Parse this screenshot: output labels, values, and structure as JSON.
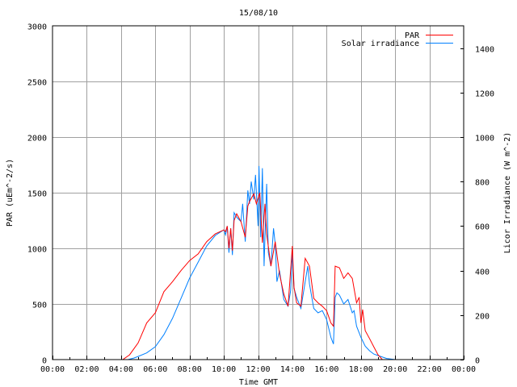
{
  "chart_data": {
    "type": "line",
    "title": "15/08/10",
    "xlabel": "Time GMT",
    "ylabel": "PAR (uEm^-2/s)",
    "y2label": "Licor Irradiance (W m^-2)",
    "xlim": [
      0,
      24
    ],
    "ylim": [
      0,
      3000
    ],
    "y2lim": [
      0,
      1500
    ],
    "grid": true,
    "legend_position": "top-right",
    "x_ticks": [
      0,
      2,
      4,
      6,
      8,
      10,
      12,
      14,
      16,
      18,
      20,
      22,
      24
    ],
    "x_tick_labels": [
      "00:00",
      "02:00",
      "04:00",
      "06:00",
      "08:00",
      "10:00",
      "12:00",
      "14:00",
      "16:00",
      "18:00",
      "20:00",
      "22:00",
      "00:00"
    ],
    "y_ticks": [
      0,
      500,
      1000,
      1500,
      2000,
      2500,
      3000
    ],
    "y_tick_labels": [
      "0",
      "500",
      "1000",
      "1500",
      "2000",
      "2500",
      "3000"
    ],
    "y2_ticks": [
      0,
      200,
      400,
      600,
      800,
      1000,
      1200,
      1400
    ],
    "y2_tick_labels": [
      "0",
      "200",
      "400",
      "600",
      "800",
      "1000",
      "1200",
      "1400"
    ],
    "series": [
      {
        "name": "PAR",
        "axis": "left",
        "color": "#ff0000",
        "points": [
          [
            0,
            0
          ],
          [
            4.1,
            0
          ],
          [
            4.5,
            43
          ],
          [
            5,
            150
          ],
          [
            5.5,
            330
          ],
          [
            6,
            420
          ],
          [
            6.5,
            610
          ],
          [
            7,
            700
          ],
          [
            7.5,
            800
          ],
          [
            8,
            890
          ],
          [
            8.5,
            950
          ],
          [
            9,
            1060
          ],
          [
            9.5,
            1130
          ],
          [
            10,
            1165
          ],
          [
            10.1,
            1150
          ],
          [
            10.2,
            1200
          ],
          [
            10.3,
            1000
          ],
          [
            10.4,
            1180
          ],
          [
            10.5,
            980
          ],
          [
            10.6,
            1250
          ],
          [
            10.75,
            1310
          ],
          [
            11,
            1240
          ],
          [
            11.25,
            1100
          ],
          [
            11.4,
            1380
          ],
          [
            11.5,
            1420
          ],
          [
            11.75,
            1490
          ],
          [
            11.9,
            1400
          ],
          [
            12,
            1450
          ],
          [
            12.1,
            1500
          ],
          [
            12.25,
            1050
          ],
          [
            12.4,
            1400
          ],
          [
            12.5,
            1130
          ],
          [
            12.75,
            840
          ],
          [
            13,
            1060
          ],
          [
            13.25,
            770
          ],
          [
            13.5,
            590
          ],
          [
            13.75,
            480
          ],
          [
            14,
            1020
          ],
          [
            14.1,
            650
          ],
          [
            14.25,
            510
          ],
          [
            14.5,
            480
          ],
          [
            14.75,
            910
          ],
          [
            15,
            840
          ],
          [
            15.25,
            550
          ],
          [
            15.5,
            510
          ],
          [
            15.75,
            480
          ],
          [
            16,
            440
          ],
          [
            16.25,
            330
          ],
          [
            16.4,
            300
          ],
          [
            16.5,
            840
          ],
          [
            16.75,
            825
          ],
          [
            17,
            730
          ],
          [
            17.25,
            780
          ],
          [
            17.5,
            730
          ],
          [
            17.75,
            510
          ],
          [
            17.9,
            560
          ],
          [
            18,
            330
          ],
          [
            18.1,
            450
          ],
          [
            18.25,
            260
          ],
          [
            18.5,
            190
          ],
          [
            18.75,
            115
          ],
          [
            19,
            43
          ],
          [
            19.25,
            0
          ],
          [
            24,
            0
          ]
        ]
      },
      {
        "name": "Solar irradiance",
        "axis": "right",
        "color": "#0080ff",
        "points": [
          [
            0,
            0
          ],
          [
            4.4,
            0
          ],
          [
            4.75,
            7
          ],
          [
            5,
            14
          ],
          [
            5.5,
            30
          ],
          [
            6,
            58
          ],
          [
            6.5,
            112
          ],
          [
            7,
            185
          ],
          [
            7.5,
            275
          ],
          [
            8,
            366
          ],
          [
            8.5,
            438
          ],
          [
            9,
            511
          ],
          [
            9.5,
            558
          ],
          [
            10,
            583
          ],
          [
            10.1,
            560
          ],
          [
            10.2,
            600
          ],
          [
            10.3,
            480
          ],
          [
            10.4,
            590
          ],
          [
            10.5,
            470
          ],
          [
            10.6,
            660
          ],
          [
            10.75,
            640
          ],
          [
            11,
            620
          ],
          [
            11.1,
            700
          ],
          [
            11.25,
            530
          ],
          [
            11.4,
            760
          ],
          [
            11.5,
            700
          ],
          [
            11.6,
            800
          ],
          [
            11.75,
            720
          ],
          [
            11.85,
            830
          ],
          [
            12,
            600
          ],
          [
            12.05,
            870
          ],
          [
            12.15,
            550
          ],
          [
            12.25,
            860
          ],
          [
            12.35,
            420
          ],
          [
            12.5,
            790
          ],
          [
            12.6,
            480
          ],
          [
            12.75,
            420
          ],
          [
            12.9,
            590
          ],
          [
            13,
            520
          ],
          [
            13.1,
            350
          ],
          [
            13.25,
            400
          ],
          [
            13.5,
            270
          ],
          [
            13.75,
            240
          ],
          [
            13.9,
            310
          ],
          [
            14,
            480
          ],
          [
            14.1,
            320
          ],
          [
            14.25,
            280
          ],
          [
            14.5,
            230
          ],
          [
            14.75,
            350
          ],
          [
            14.9,
            420
          ],
          [
            15,
            340
          ],
          [
            15.25,
            230
          ],
          [
            15.5,
            210
          ],
          [
            15.75,
            220
          ],
          [
            16,
            180
          ],
          [
            16.25,
            100
          ],
          [
            16.4,
            70
          ],
          [
            16.5,
            280
          ],
          [
            16.6,
            300
          ],
          [
            16.75,
            290
          ],
          [
            17,
            250
          ],
          [
            17.25,
            270
          ],
          [
            17.5,
            210
          ],
          [
            17.6,
            220
          ],
          [
            17.75,
            150
          ],
          [
            18,
            100
          ],
          [
            18.25,
            60
          ],
          [
            18.5,
            40
          ],
          [
            18.75,
            25
          ],
          [
            19,
            18
          ],
          [
            19.5,
            5
          ],
          [
            20,
            0
          ],
          [
            24,
            0
          ]
        ]
      }
    ]
  }
}
